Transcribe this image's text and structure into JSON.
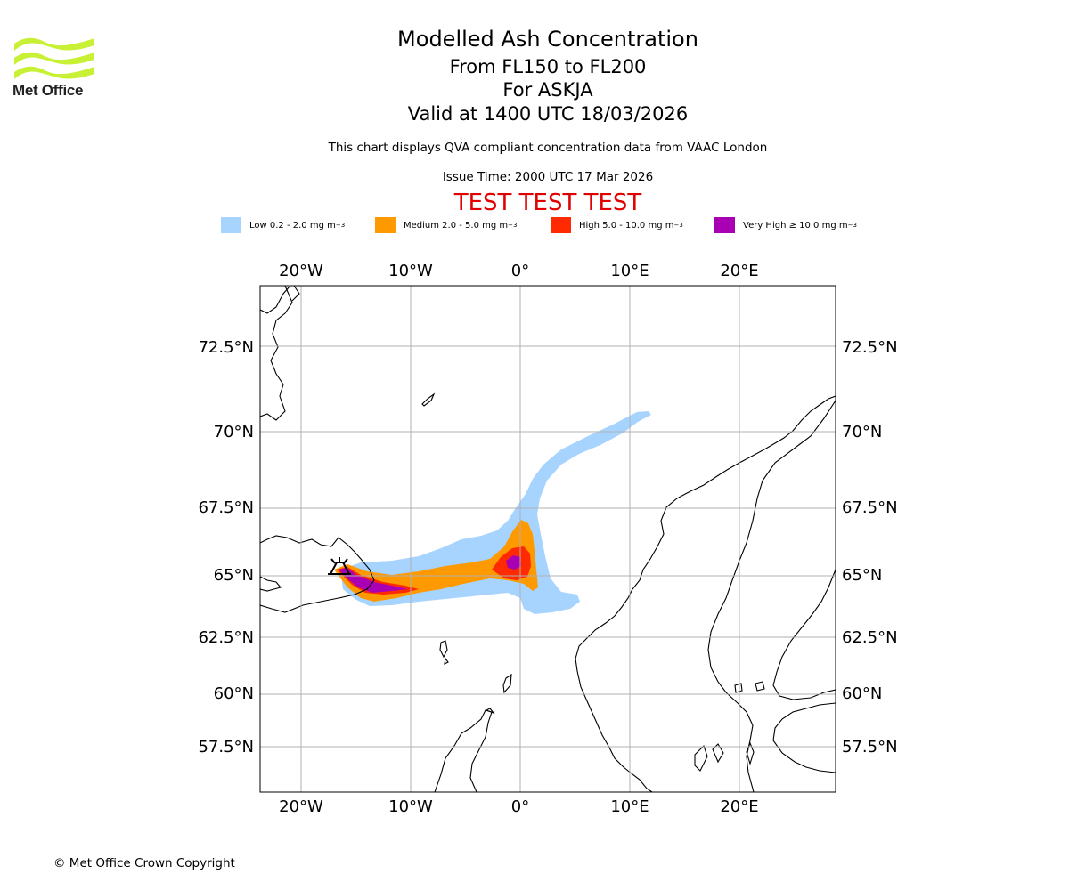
{
  "header": {
    "logo_text": "Met Office",
    "title": "Modelled Ash Concentration",
    "level_range": "From FL150 to FL200",
    "volcano": "For ASKJA",
    "valid_time": "Valid at 1400 UTC 18/03/2026",
    "description": "This chart displays QVA compliant concentration data from VAAC London",
    "issue_time": "Issue Time: 2000 UTC 17 Mar 2026",
    "test_banner": "TEST TEST TEST"
  },
  "legend": [
    {
      "label": "Low 0.2 - 2.0 mg m",
      "color": "#a6d4ff"
    },
    {
      "label": "Medium 2.0 - 5.0 mg m",
      "color": "#ff9900"
    },
    {
      "label": "High 5.0 - 10.0 mg m",
      "color": "#ff2a00"
    },
    {
      "label": "Very High ≥ 10.0 mg m",
      "color": "#a900b3"
    }
  ],
  "legend_unit_exponent": "−3",
  "map": {
    "lon_ticks": [
      "20°W",
      "10°W",
      "0°",
      "10°E",
      "20°E"
    ],
    "lat_ticks": [
      "72.5°N",
      "70°N",
      "67.5°N",
      "65°N",
      "62.5°N",
      "60°N",
      "57.5°N"
    ],
    "volcano_marker": "volcano"
  },
  "footer": {
    "copyright": "© Met Office Crown Copyright"
  }
}
